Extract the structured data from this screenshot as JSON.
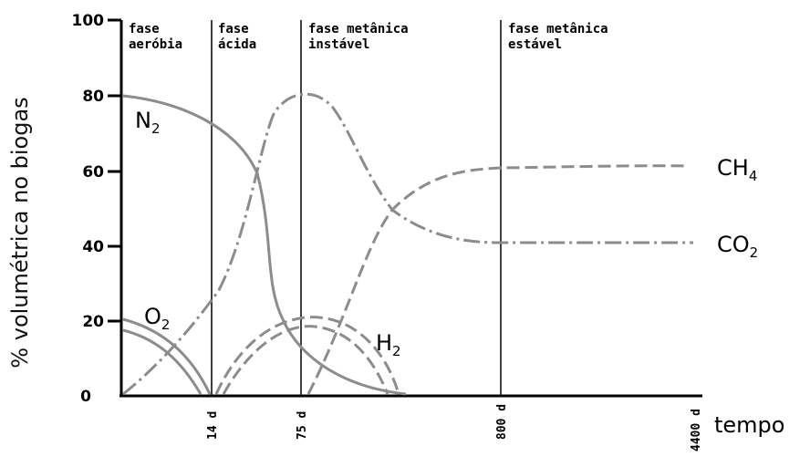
{
  "chart_data": {
    "type": "line",
    "title": "",
    "ylabel": "% volumétrica no biogas",
    "xlabel": "tempo",
    "ylim": [
      0,
      100
    ],
    "yticks": [
      "0",
      "20",
      "40",
      "60",
      "80",
      "100"
    ],
    "xticks": [
      "14 d",
      "75 d",
      "800 d",
      "4400 d"
    ],
    "phases": [
      {
        "line1": "fase",
        "line2": "aeróbia"
      },
      {
        "line1": "fase",
        "line2": "ácida"
      },
      {
        "line1": "fase metânica",
        "line2": "instável"
      },
      {
        "line1": "fase metânica",
        "line2": "estável"
      }
    ],
    "series": [
      {
        "name": "N2",
        "label_main": "N",
        "label_sub": "2",
        "style": "solid",
        "x": [
          0,
          1,
          2,
          3,
          4,
          5
        ],
        "y": [
          80,
          72,
          0,
          0,
          0,
          0
        ]
      },
      {
        "name": "O2",
        "label_main": "O",
        "label_sub": "2",
        "style": "solid",
        "x": [
          0,
          1
        ],
        "y": [
          20,
          0
        ]
      },
      {
        "name": "H2",
        "label_main": "H",
        "label_sub": "2",
        "style": "dashed",
        "x": [
          1,
          2,
          2.7
        ],
        "y": [
          0,
          20,
          0
        ]
      },
      {
        "name": "CH4",
        "label_main": "CH",
        "label_sub": "4",
        "style": "dashed",
        "x": [
          2,
          3,
          4
        ],
        "y": [
          0,
          61,
          62
        ]
      },
      {
        "name": "CO2",
        "label_main": "CO",
        "label_sub": "2",
        "style": "dash-dot",
        "x": [
          0,
          1,
          2,
          3,
          4
        ],
        "y": [
          0,
          22,
          80,
          41,
          41
        ]
      }
    ]
  }
}
